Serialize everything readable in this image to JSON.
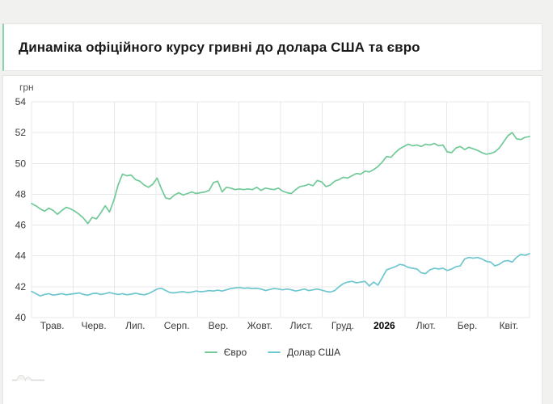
{
  "header": {
    "title": "Динаміка офіційного курсу гривні до долара США та євро"
  },
  "chart": {
    "unit": "грн"
  },
  "chart_data": {
    "type": "line",
    "title": "Динаміка офіційного курсу гривні до долара США та євро",
    "ylabel": "грн",
    "xlabel": "",
    "ylim": [
      40,
      54
    ],
    "yticks": [
      54,
      52,
      50,
      48,
      46,
      44,
      42,
      40
    ],
    "x_categories": [
      "Трав.",
      "Черв.",
      "Лип.",
      "Серп.",
      "Вер.",
      "Жовт.",
      "Лист.",
      "Груд.",
      "2026",
      "Лют.",
      "Бер.",
      "Квіт."
    ],
    "bold_category": "2026",
    "grid": true,
    "legend_position": "bottom",
    "series": [
      {
        "name": "Євро",
        "color": "#70c996",
        "values": [
          47.4,
          47.25,
          47.05,
          46.9,
          47.1,
          46.95,
          46.7,
          46.95,
          47.15,
          47.05,
          46.9,
          46.7,
          46.45,
          46.1,
          46.5,
          46.4,
          46.8,
          47.25,
          46.85,
          47.6,
          48.6,
          49.3,
          49.2,
          49.25,
          48.95,
          48.85,
          48.6,
          48.45,
          48.65,
          49.05,
          48.35,
          47.75,
          47.7,
          47.95,
          48.1,
          47.95,
          48.05,
          48.15,
          48.05,
          48.1,
          48.15,
          48.25,
          48.75,
          48.85,
          48.15,
          48.45,
          48.4,
          48.3,
          48.35,
          48.3,
          48.35,
          48.3,
          48.45,
          48.25,
          48.4,
          48.35,
          48.3,
          48.4,
          48.2,
          48.1,
          48.05,
          48.3,
          48.5,
          48.55,
          48.65,
          48.55,
          48.9,
          48.8,
          48.5,
          48.6,
          48.85,
          48.95,
          49.1,
          49.05,
          49.2,
          49.35,
          49.3,
          49.5,
          49.45,
          49.6,
          49.8,
          50.1,
          50.45,
          50.4,
          50.7,
          50.95,
          51.1,
          51.25,
          51.15,
          51.2,
          51.1,
          51.25,
          51.2,
          51.3,
          51.15,
          51.2,
          50.75,
          50.7,
          51.0,
          51.1,
          50.9,
          51.05,
          50.95,
          50.85,
          50.7,
          50.6,
          50.65,
          50.75,
          51.0,
          51.4,
          51.8,
          52.0,
          51.6,
          51.55,
          51.7,
          51.75
        ]
      },
      {
        "name": "Долар США",
        "color": "#6ec6cf",
        "values": [
          41.7,
          41.55,
          41.4,
          41.5,
          41.55,
          41.45,
          41.5,
          41.55,
          41.48,
          41.52,
          41.55,
          41.6,
          41.5,
          41.45,
          41.55,
          41.58,
          41.5,
          41.55,
          41.62,
          41.55,
          41.5,
          41.55,
          41.48,
          41.52,
          41.58,
          41.52,
          41.48,
          41.55,
          41.7,
          41.85,
          41.9,
          41.75,
          41.62,
          41.6,
          41.65,
          41.68,
          41.62,
          41.65,
          41.72,
          41.68,
          41.7,
          41.75,
          41.72,
          41.78,
          41.72,
          41.8,
          41.88,
          41.92,
          41.95,
          41.9,
          41.92,
          41.88,
          41.9,
          41.85,
          41.75,
          41.82,
          41.88,
          41.85,
          41.8,
          41.85,
          41.8,
          41.72,
          41.78,
          41.85,
          41.75,
          41.8,
          41.85,
          41.78,
          41.7,
          41.65,
          41.75,
          42.0,
          42.2,
          42.3,
          42.35,
          42.25,
          42.3,
          42.35,
          42.05,
          42.3,
          42.1,
          42.6,
          43.1,
          43.2,
          43.3,
          43.45,
          43.4,
          43.25,
          43.2,
          43.15,
          42.9,
          42.85,
          43.1,
          43.2,
          43.15,
          43.2,
          43.05,
          43.15,
          43.3,
          43.35,
          43.8,
          43.9,
          43.85,
          43.9,
          43.8,
          43.65,
          43.6,
          43.35,
          43.45,
          43.65,
          43.7,
          43.6,
          43.9,
          44.1,
          44.05,
          44.15
        ]
      }
    ]
  }
}
